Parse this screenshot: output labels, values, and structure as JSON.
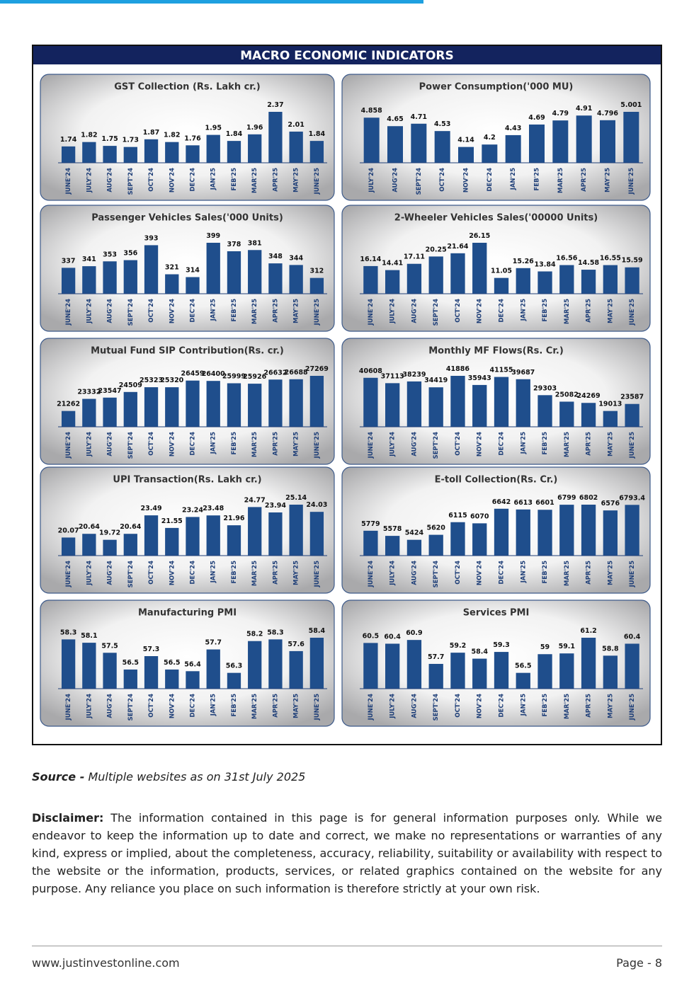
{
  "header": {
    "title": "MACRO ECONOMIC INDICATORS"
  },
  "chart_data": [
    {
      "type": "bar",
      "title": "GST Collection (Rs. Lakh cr.)",
      "color": "#1f4e8c",
      "categories": [
        "JUNE'24",
        "JULY'24",
        "AUG'24",
        "SEPT'24",
        "OCT'24",
        "NOV'24",
        "DEC'24",
        "JAN'25",
        "FEB'25",
        "MAR'25",
        "APR'25",
        "MAY'25",
        "JUNE'25"
      ],
      "values": [
        1.74,
        1.82,
        1.75,
        1.73,
        1.87,
        1.82,
        1.76,
        1.95,
        1.84,
        1.96,
        2.37,
        2.01,
        1.84
      ]
    },
    {
      "type": "bar",
      "title": "Power Consumption('000 MU)",
      "color": "#1f4e8c",
      "categories": [
        "JULY'24",
        "AUG'24",
        "SEPT'24",
        "OCT'24",
        "NOV'24",
        "DEC'24",
        "JAN'25",
        "FEB'25",
        "MAR'25",
        "APR'25",
        "MAY'25",
        "JUNE'25"
      ],
      "values": [
        4.858,
        4.65,
        4.71,
        4.53,
        4.14,
        4.2,
        4.43,
        4.69,
        4.79,
        4.91,
        4.796,
        5.001
      ]
    },
    {
      "type": "bar",
      "title": "Passenger Vehicles Sales('000 Units)",
      "color": "#1f4e8c",
      "categories": [
        "JUNE'24",
        "JULY'24",
        "AUG'24",
        "SEPT'24",
        "OCT'24",
        "NOV'24",
        "DEC'24",
        "JAN'25",
        "FEB'25",
        "MAR'25",
        "APR'25",
        "MAY'25",
        "JUNE'25"
      ],
      "values": [
        337,
        341,
        353,
        356,
        393,
        321,
        314,
        399,
        378,
        381,
        348,
        344,
        312
      ]
    },
    {
      "type": "bar",
      "title": "2-Wheeler Vehicles Sales('00000 Units)",
      "color": "#1f4e8c",
      "categories": [
        "JUNE'24",
        "JULY'24",
        "AUG'24",
        "SEPT'24",
        "OCT'24",
        "NOV'24",
        "DEC'24",
        "JAN'25",
        "FEB'25",
        "MAR'25",
        "APR'25",
        "MAY'25",
        "JUNE'25"
      ],
      "values": [
        16.14,
        14.41,
        17.11,
        20.25,
        21.64,
        26.15,
        11.05,
        15.26,
        13.84,
        16.56,
        14.58,
        16.55,
        15.59
      ]
    },
    {
      "type": "bar",
      "title": "Mutual Fund SIP Contribution(Rs. cr.)",
      "color": "#1f4e8c",
      "categories": [
        "JUNE'24",
        "JULY'24",
        "AUG'24",
        "SEPT'24",
        "OCT'24",
        "NOV'24",
        "DEC'24",
        "JAN'25",
        "FEB'25",
        "MAR'25",
        "APR'25",
        "MAY'25",
        "JUNE'25"
      ],
      "values": [
        21262,
        23332,
        23547,
        24509,
        25323,
        25320,
        26459,
        26400,
        25999,
        25926,
        26632,
        26688,
        27269
      ]
    },
    {
      "type": "bar",
      "title": "Monthly MF Flows(Rs. Cr.)",
      "color": "#1f4e8c",
      "categories": [
        "JUNE'24",
        "JULY'24",
        "AUG'24",
        "SEPT'24",
        "OCT'24",
        "NOV'24",
        "DEC'24",
        "JAN'25",
        "FEB'25",
        "MAR'25",
        "APR'25",
        "MAY'25",
        "JUNE'25"
      ],
      "values": [
        40608,
        37113,
        38239,
        34419,
        41886,
        35943,
        41155,
        39687,
        29303,
        25082,
        24269,
        19013,
        23587
      ]
    },
    {
      "type": "bar",
      "title": "UPI Transaction(Rs. Lakh cr.)",
      "color": "#1f4e8c",
      "categories": [
        "JUNE'24",
        "JULY'24",
        "AUG'24",
        "SEPT'24",
        "OCT'24",
        "NOV'24",
        "DEC'24",
        "JAN'25",
        "FEB'25",
        "MAR'25",
        "APR'25",
        "MAY'25",
        "JUNE'25"
      ],
      "values": [
        20.07,
        20.64,
        19.72,
        20.64,
        23.49,
        21.55,
        23.24,
        23.48,
        21.96,
        24.77,
        23.94,
        25.14,
        24.03
      ]
    },
    {
      "type": "bar",
      "title": "E-toll Collection(Rs. Cr.)",
      "color": "#1f4e8c",
      "categories": [
        "JUNE'24",
        "JULY'24",
        "AUG'24",
        "SEPT'24",
        "OCT'24",
        "NOV'24",
        "DEC'24",
        "JAN'25",
        "FEB'25",
        "MAR'25",
        "APR'25",
        "MAY'25",
        "JUNE'25"
      ],
      "values": [
        5779,
        5578,
        5424,
        5620,
        6115,
        6070,
        6642,
        6613,
        6601,
        6799,
        6802,
        6576,
        6793.4
      ]
    },
    {
      "type": "bar",
      "title": "Manufacturing PMI",
      "color": "#1f4e8c",
      "categories": [
        "JUNE'24",
        "JULY'24",
        "AUG'24",
        "SEPT'24",
        "OCT'24",
        "NOV'24",
        "DEC'24",
        "JAN'25",
        "FEB'25",
        "MAR'25",
        "APR'25",
        "MAY'25",
        "JUNE'25"
      ],
      "values": [
        58.3,
        58.1,
        57.5,
        56.5,
        57.3,
        56.5,
        56.4,
        57.7,
        56.3,
        58.2,
        58.3,
        57.6,
        58.4
      ]
    },
    {
      "type": "bar",
      "title": "Services PMI",
      "color": "#1f4e8c",
      "categories": [
        "JUNE'24",
        "JULY'24",
        "AUG'24",
        "SEPT'24",
        "OCT'24",
        "NOV'24",
        "DEC'24",
        "JAN'25",
        "FEB'25",
        "MAR'25",
        "APR'25",
        "MAY'25",
        "JUNE'25"
      ],
      "values": [
        60.5,
        60.4,
        60.9,
        57.7,
        59.2,
        58.4,
        59.3,
        56.5,
        59,
        59.1,
        61.2,
        58.8,
        60.4
      ]
    }
  ],
  "source": {
    "label": "Source -",
    "text": "Multiple websites as on 31st July 2025"
  },
  "disclaimer": {
    "label": "Disclaimer:",
    "text": "The information contained in this page is for general information purposes only. While we endeavor to keep the information up to date and correct, we make no representations or warranties of any kind, express or implied, about the completeness, accuracy, reliability, suitability or availability with respect to the website or the information, products, services, or related graphics contained on the website for any purpose. Any reliance you place on such information is therefore strictly at your own risk."
  },
  "footer": {
    "url": "www.justinvestonline.com",
    "page": "Page - 8"
  }
}
